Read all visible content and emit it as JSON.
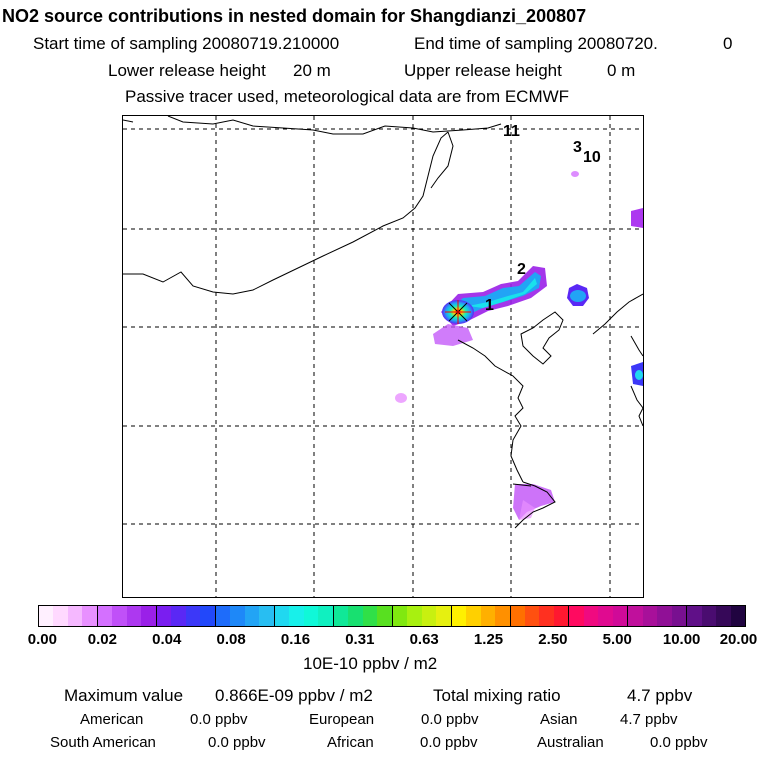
{
  "header": {
    "title": "NO2 source contributions in nested domain for Shangdianzi_200807",
    "start_label": "Start time of sampling 20080719.210000",
    "end_label": "End time of sampling 20080720.",
    "end_suffix": "0",
    "lower_label": "Lower release height",
    "lower_value": "20 m",
    "upper_label": "Upper release height",
    "upper_value": "0 m",
    "note": "Passive tracer used, meteorological data are from ECMWF"
  },
  "map": {
    "labels": [
      "1",
      "2",
      "3",
      "10",
      "11"
    ]
  },
  "colorbar": {
    "tick_labels": [
      "0.00",
      "0.02",
      "0.04",
      "0.08",
      "0.16",
      "0.31",
      "0.63",
      "1.25",
      "2.50",
      "5.00",
      "10.00",
      "20.00"
    ],
    "colors": [
      "#fff0ff",
      "#ffd9ff",
      "#f5b8ff",
      "#e890ff",
      "#d470ff",
      "#c050f8",
      "#ad38f0",
      "#9a20e8",
      "#7a1ef0",
      "#5a28f5",
      "#3c38f8",
      "#2248fa",
      "#1e6cfa",
      "#1e88f8",
      "#22a4f5",
      "#28bef2",
      "#20d8f0",
      "#18f0ea",
      "#10f8d8",
      "#10f0c0",
      "#10e898",
      "#18e070",
      "#30e048",
      "#58e020",
      "#80e810",
      "#a8f010",
      "#c8f010",
      "#e6f010",
      "#fff000",
      "#ffd000",
      "#ffb000",
      "#ff9000",
      "#ff7000",
      "#ff5010",
      "#ff3020",
      "#ff1830",
      "#ff0a60",
      "#f00a80",
      "#e00a90",
      "#d00a98",
      "#c0109c",
      "#a8109a",
      "#901096",
      "#781090",
      "#601088",
      "#4a0c70",
      "#360858",
      "#200440"
    ],
    "unit": "10E-10 ppbv / m2"
  },
  "summary": {
    "max_label": "Maximum value",
    "max_value": "0.866E-09 ppbv / m2",
    "total_label": "Total mixing ratio",
    "total_value": "4.7 ppbv",
    "regions": [
      {
        "name": "American",
        "value": "0.0 ppbv"
      },
      {
        "name": "European",
        "value": "0.0 ppbv"
      },
      {
        "name": "Asian",
        "value": "4.7 ppbv"
      },
      {
        "name": "South American",
        "value": "0.0 ppbv"
      },
      {
        "name": "African",
        "value": "0.0 ppbv"
      },
      {
        "name": "Australian",
        "value": "0.0 ppbv"
      }
    ]
  }
}
